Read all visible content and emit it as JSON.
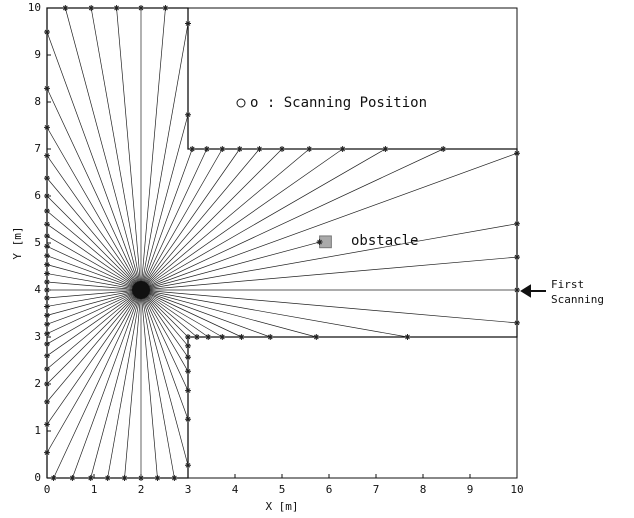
{
  "chart_data": {
    "type": "scatter",
    "xlabel": "X [m]",
    "ylabel": "Y [m]",
    "xlim": [
      0,
      10
    ],
    "ylim": [
      0,
      10
    ],
    "xticks": [
      0,
      1,
      2,
      3,
      4,
      5,
      6,
      7,
      8,
      9,
      10
    ],
    "yticks": [
      0,
      1,
      2,
      3,
      4,
      5,
      6,
      7,
      8,
      9,
      10
    ],
    "color": "#222222",
    "scanning_position": {
      "x": 2,
      "y": 4
    },
    "walls": {
      "x": [
        0,
        3,
        3,
        10,
        10,
        3,
        3,
        0,
        0
      ],
      "y": [
        0,
        0,
        3,
        3,
        7,
        7,
        10,
        10,
        0
      ]
    },
    "obstacle": {
      "x": [
        5.8,
        6.05
      ],
      "y": [
        4.9,
        5.15
      ]
    },
    "hit_points": {
      "x": [
        10,
        10,
        10,
        5.8,
        10,
        8.43,
        7.2,
        6.29,
        5.58,
        5.0,
        4.52,
        4.1,
        3.73,
        3.4,
        3.09,
        3,
        3,
        2.52,
        2,
        1.48,
        0.94,
        0.39,
        0,
        0,
        0,
        0,
        0,
        0,
        0,
        0,
        0,
        0,
        0,
        0,
        0,
        0,
        0,
        0,
        0,
        0,
        0,
        0,
        0,
        0,
        0,
        0,
        0,
        0,
        0,
        0.14,
        0.54,
        0.93,
        1.29,
        1.65,
        2,
        2.35,
        2.71,
        3,
        3,
        3,
        3,
        3,
        3,
        3,
        3.19,
        3.43,
        3.73,
        4.14,
        4.75,
        5.73,
        7.67,
        10
      ],
      "y": [
        4,
        4.7,
        5.41,
        5.02,
        6.91,
        7,
        7,
        7,
        7,
        7,
        7,
        7,
        7,
        7,
        7,
        7.73,
        9.67,
        10,
        10,
        10,
        10,
        10,
        9.49,
        8.29,
        7.46,
        6.86,
        6.38,
        6.0,
        5.68,
        5.4,
        5.15,
        4.93,
        4.73,
        4.54,
        4.35,
        4.17,
        4.0,
        3.83,
        3.65,
        3.46,
        3.27,
        3.07,
        2.85,
        2.6,
        2.32,
        2.0,
        1.62,
        1.14,
        0.54,
        0,
        0,
        0,
        0,
        0,
        0,
        0,
        0,
        0.27,
        1.25,
        1.86,
        2.27,
        2.57,
        2.81,
        3.0,
        3,
        3,
        3,
        3,
        3,
        3,
        3,
        3.3
      ]
    },
    "annotations": {
      "legend": "o : Scanning Position",
      "obstacle": "obstacle",
      "first_scanning": [
        "First",
        "Scanning"
      ]
    }
  }
}
